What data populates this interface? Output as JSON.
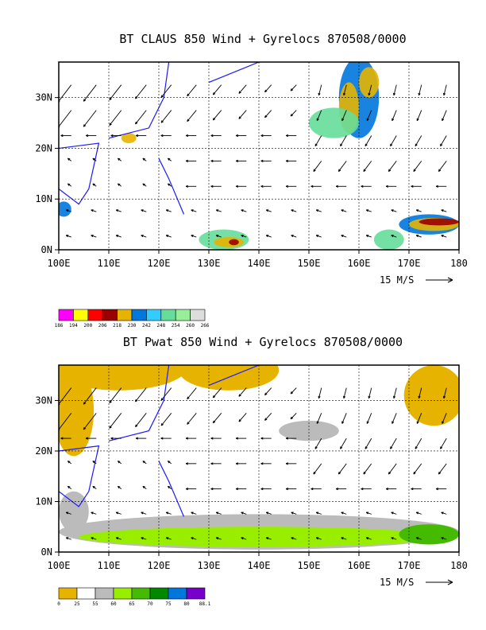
{
  "chart_data": [
    {
      "type": "heatmap",
      "title": "BT CLAUS 850 Wind + Gyrelocs 870508/0000",
      "x_ticks": [
        "100E",
        "110E",
        "120E",
        "130E",
        "140E",
        "150E",
        "160E",
        "170E",
        "180"
      ],
      "y_ticks": [
        "0N",
        "10N",
        "20N",
        "30N"
      ],
      "xlim": [
        100,
        180
      ],
      "ylim": [
        0,
        37
      ],
      "grid": true,
      "reference_vector": "15 M/S",
      "colorbar": {
        "labels": [
          "186",
          "194",
          "200",
          "206",
          "218",
          "230",
          "242",
          "248",
          "254",
          "260",
          "266"
        ],
        "colors": [
          "#ff00ff",
          "#ffff00",
          "#ff0000",
          "#990000",
          "#e6b400",
          "#0077dd",
          "#33ccff",
          "#66dd99",
          "#99ee99",
          "#dddddd"
        ]
      }
    },
    {
      "type": "heatmap",
      "title": "BT Pwat 850 Wind + Gyrelocs 870508/0000",
      "x_ticks": [
        "100E",
        "110E",
        "120E",
        "130E",
        "140E",
        "150E",
        "160E",
        "170E",
        "180"
      ],
      "y_ticks": [
        "0N",
        "10N",
        "20N",
        "30N"
      ],
      "xlim": [
        100,
        180
      ],
      "ylim": [
        0,
        37
      ],
      "grid": true,
      "reference_vector": "15 M/S",
      "colorbar": {
        "labels": [
          "0",
          "25",
          "55",
          "60",
          "65",
          "70",
          "75",
          "80",
          "88.1"
        ],
        "colors": [
          "#e6b400",
          "#ffffff",
          "#bbbbbb",
          "#99ee00",
          "#44bb00",
          "#008800",
          "#0077dd",
          "#7700cc"
        ]
      }
    }
  ],
  "ui": {
    "title1": "BT CLAUS 850 Wind + Gyrelocs 870508/0000",
    "title2": "BT Pwat 850 Wind + Gyrelocs 870508/0000"
  }
}
